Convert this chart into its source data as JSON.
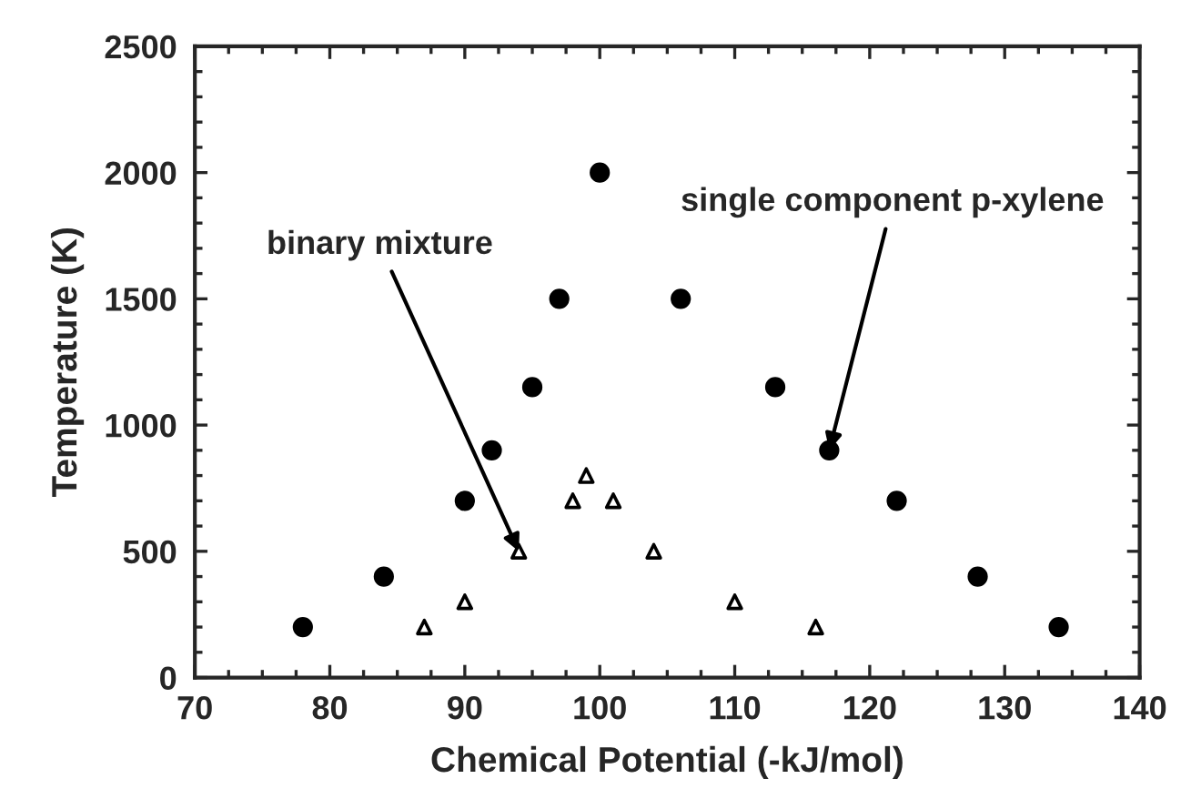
{
  "chart_data": {
    "type": "scatter",
    "xlabel": "Chemical Potential (-kJ/mol)",
    "ylabel": "Temperature (K)",
    "xlim": [
      70,
      140
    ],
    "xticks": [
      70,
      80,
      90,
      100,
      110,
      120,
      130,
      140
    ],
    "ylim": [
      0,
      2500
    ],
    "yticks": [
      0,
      500,
      1000,
      1500,
      2000,
      2500
    ],
    "grid": false,
    "legend": false,
    "series": [
      {
        "color": "#000000",
        "marker": "circle",
        "x": [
          78,
          84,
          90,
          92,
          95,
          97,
          100,
          106,
          113,
          117,
          122,
          128,
          134
        ],
        "values": [
          200,
          400,
          700,
          900,
          1150,
          1500,
          2000,
          1500,
          1150,
          900,
          700,
          400,
          200
        ]
      },
      {
        "color": "#000000",
        "marker": "triangle",
        "x": [
          87,
          90,
          94,
          98,
          99,
          101,
          104,
          110,
          116
        ],
        "values": [
          200,
          300,
          500,
          700,
          800,
          700,
          500,
          300,
          200
        ]
      }
    ],
    "annotations": [
      {
        "text": "binary mixture",
        "x": 94,
        "y": 500
      },
      {
        "text": "single component p-xylene",
        "x": 117,
        "y": 900
      }
    ]
  }
}
